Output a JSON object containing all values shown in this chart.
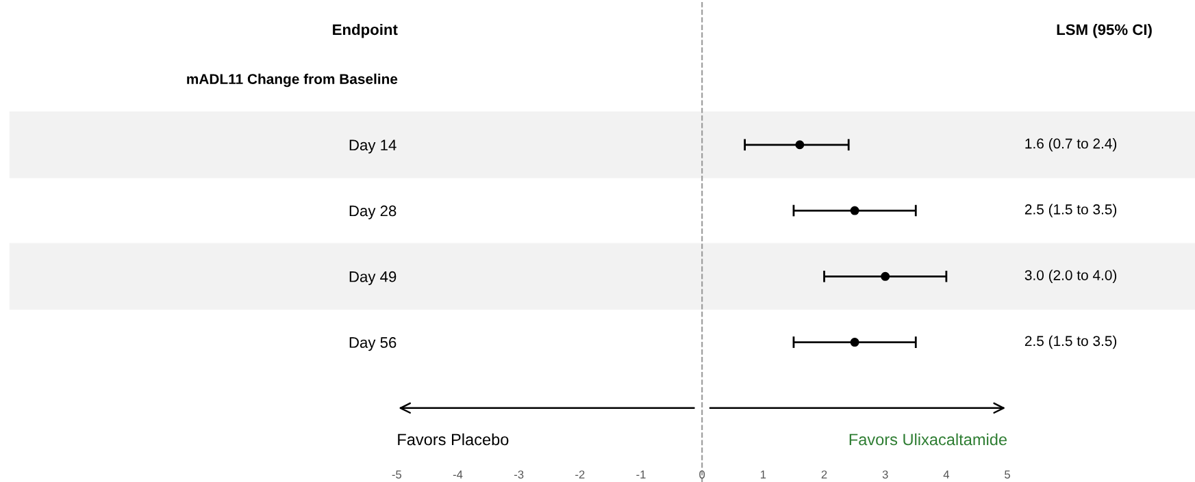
{
  "chart_data": {
    "type": "scatter",
    "orientation": "horizontal",
    "categories": [
      "Day 14",
      "Day 28",
      "Day 49",
      "Day 56"
    ],
    "series": [
      {
        "color": "#000000",
        "values": [
          1.6,
          2.5,
          3.0,
          2.5
        ],
        "errors": [
          [
            0.7,
            2.4
          ],
          [
            1.5,
            3.5
          ],
          [
            2.0,
            4.0
          ],
          [
            1.5,
            3.5
          ]
        ],
        "value_labels": [
          "1.6 (0.7 to 2.4)",
          "2.5 (1.5 to 3.5)",
          "3.0 (2.0 to 4.0)",
          "2.5 (1.5 to 3.5)"
        ]
      }
    ],
    "xlim": [
      -5,
      5
    ],
    "xticks": [
      -5,
      -4,
      -3,
      -2,
      -1,
      0,
      1,
      2,
      3,
      4,
      5
    ],
    "marker": "circle",
    "grid": false,
    "legend": false,
    "ref_lines": [
      {
        "axis": "x",
        "value": 0,
        "color": "#999999",
        "line_style": "dashed"
      }
    ],
    "annotations": [
      "Endpoint",
      "LSM (95% CI)",
      "mADL11 Change from Baseline",
      "Favors Placebo",
      "Favors Ulixacaltamide"
    ]
  }
}
